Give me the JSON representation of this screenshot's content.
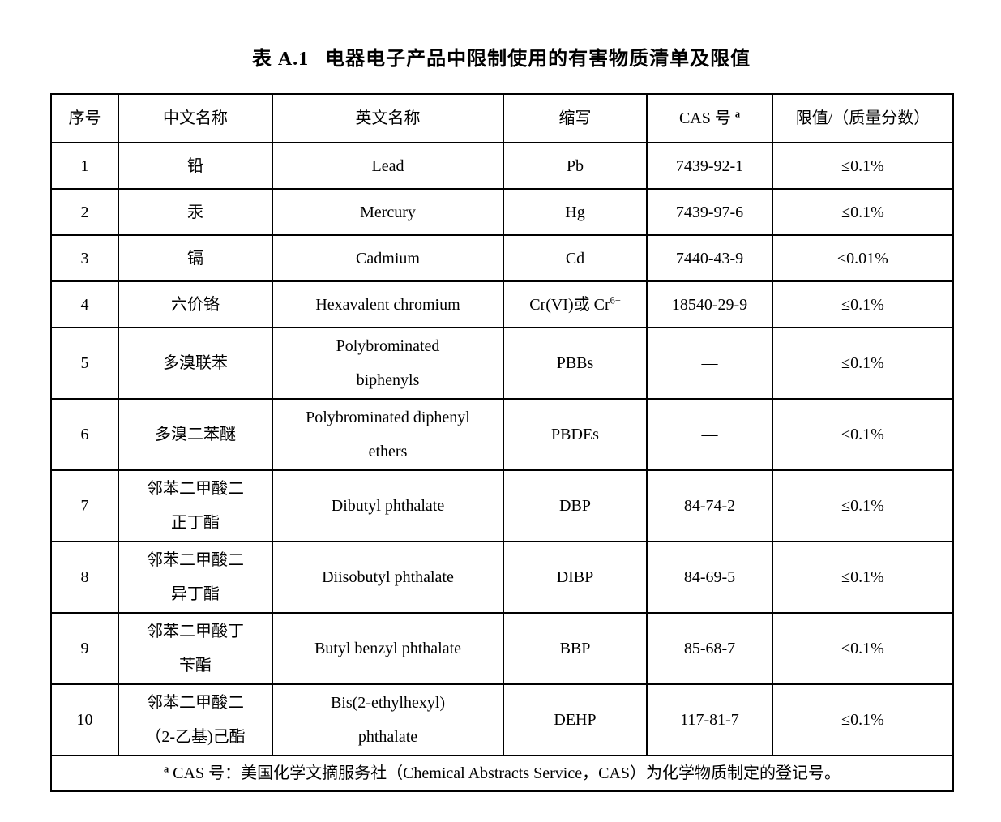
{
  "title": {
    "label": "表 A.1",
    "text": "电器电子产品中限制使用的有害物质清单及限值"
  },
  "table": {
    "columns": [
      "序号",
      "中文名称",
      "英文名称",
      "缩写",
      "CAS 号 ^{a}",
      "限值/（质量分数）"
    ],
    "row_keys": [
      "no",
      "cn",
      "en",
      "abbr",
      "cas",
      "limit"
    ],
    "rows": [
      {
        "no": "1",
        "cn": "铅",
        "en": "Lead",
        "abbr": "Pb",
        "cas": "7439-92-1",
        "limit": "≤0.1%"
      },
      {
        "no": "2",
        "cn": "汞",
        "en": "Mercury",
        "abbr": "Hg",
        "cas": "7439-97-6",
        "limit": "≤0.1%"
      },
      {
        "no": "3",
        "cn": "镉",
        "en": "Cadmium",
        "abbr": "Cd",
        "cas": "7440-43-9",
        "limit": "≤0.01%"
      },
      {
        "no": "4",
        "cn": "六价铬",
        "en": "Hexavalent chromium",
        "abbr": "Cr(VI)或 Cr^{6+}",
        "cas": "18540-29-9",
        "limit": "≤0.1%"
      },
      {
        "no": "5",
        "cn": "多溴联苯",
        "en": "Polybrominated\nbiphenyls",
        "abbr": "PBBs",
        "cas": "—",
        "limit": "≤0.1%"
      },
      {
        "no": "6",
        "cn": "多溴二苯醚",
        "en": "Polybrominated diphenyl\nethers",
        "abbr": "PBDEs",
        "cas": "—",
        "limit": "≤0.1%"
      },
      {
        "no": "7",
        "cn": "邻苯二甲酸二\n正丁酯",
        "en": "Dibutyl phthalate",
        "abbr": "DBP",
        "cas": "84-74-2",
        "limit": "≤0.1%"
      },
      {
        "no": "8",
        "cn": "邻苯二甲酸二\n异丁酯",
        "en": "Diisobutyl phthalate",
        "abbr": "DIBP",
        "cas": "84-69-5",
        "limit": "≤0.1%"
      },
      {
        "no": "9",
        "cn": "邻苯二甲酸丁\n苄酯",
        "en": "Butyl benzyl phthalate",
        "abbr": "BBP",
        "cas": "85-68-7",
        "limit": "≤0.1%"
      },
      {
        "no": "10",
        "cn": "邻苯二甲酸二\n（2-乙基)己酯",
        "en": "Bis(2-ethylhexyl)\nphthalate",
        "abbr": "DEHP",
        "cas": "117-81-7",
        "limit": "≤0.1%"
      }
    ],
    "footnote": "^{a}  CAS 号：美国化学文摘服务社（Chemical Abstracts Service，CAS）为化学物质制定的登记号。"
  },
  "colors": {
    "text": "#000000",
    "background": "#ffffff",
    "border": "#000000"
  }
}
